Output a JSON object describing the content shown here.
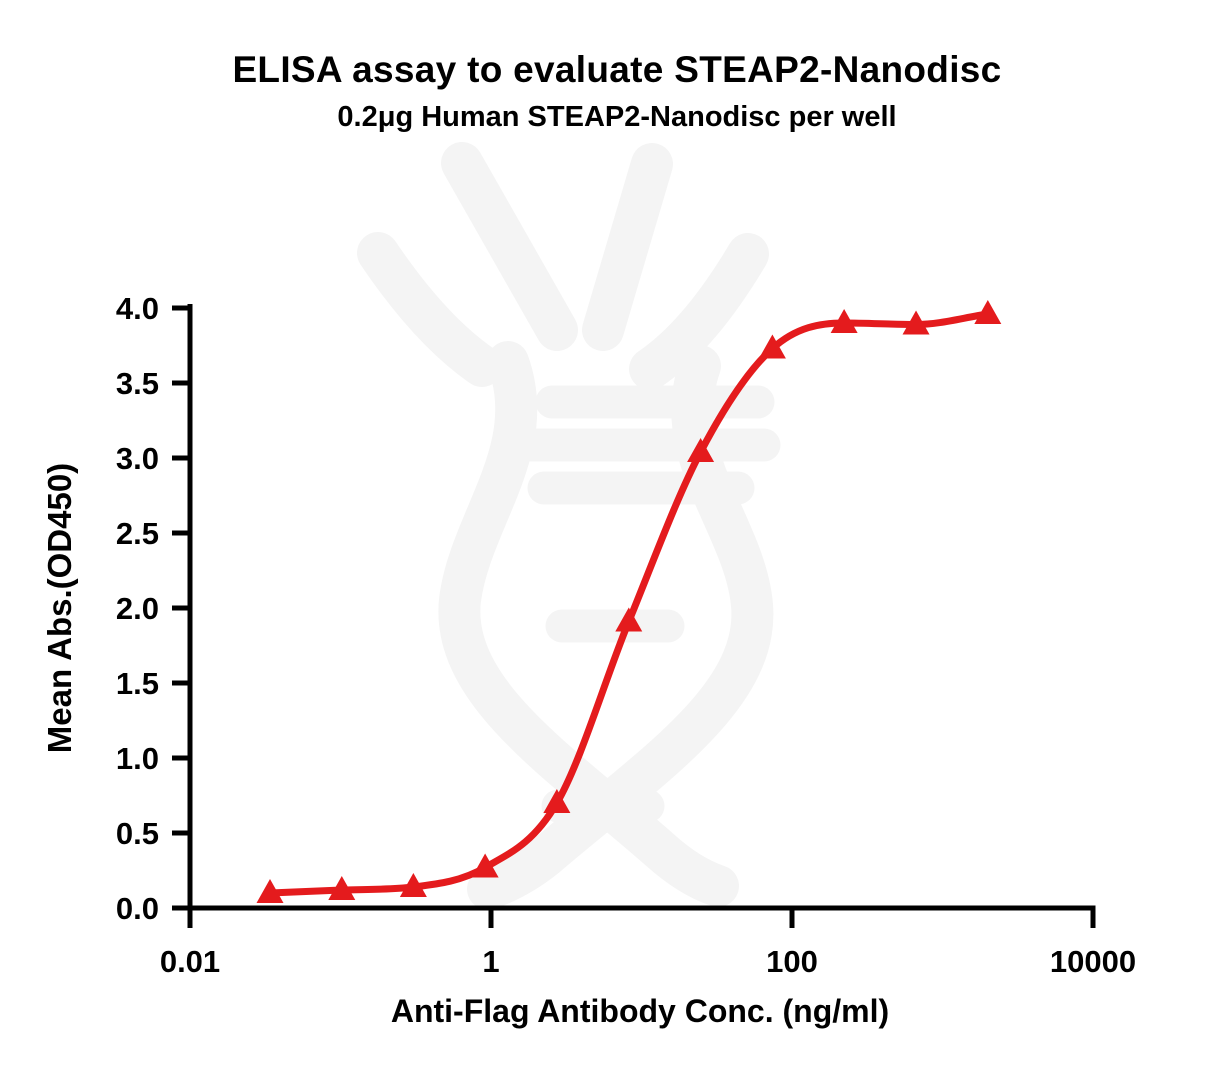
{
  "page": {
    "background": "#ffffff"
  },
  "chart": {
    "title": "ELISA assay to evaluate STEAP2-Nanodisc",
    "subtitle": "0.2μg Human STEAP2-Nanodisc per well",
    "xlabel": "Anti-Flag Antibody Conc. (ng/ml)",
    "ylabel": "Mean Abs.(OD450)",
    "colors": {
      "curve": "#e41b1d",
      "axis": "#000000",
      "text": "#000000",
      "watermark": "#f4f4f4",
      "background": "#ffffff"
    }
  },
  "chart_data": {
    "type": "scatter",
    "subtype": "dose-response sigmoid curve with triangle markers",
    "series_name": "0.2μg Human STEAP2-Nanodisc per well",
    "x_scale": "log10",
    "x": [
      0.034,
      0.102,
      0.305,
      0.914,
      2.74,
      8.23,
      24.7,
      74.1,
      222,
      667,
      2000
    ],
    "y": [
      0.1,
      0.12,
      0.14,
      0.27,
      0.7,
      1.91,
      3.04,
      3.73,
      3.9,
      3.89,
      3.96
    ],
    "xlim": [
      0.01,
      10000
    ],
    "ylim": [
      0.0,
      4.0
    ],
    "x_ticks": [
      {
        "value": 0.01,
        "label": "0.01"
      },
      {
        "value": 1,
        "label": "1"
      },
      {
        "value": 100,
        "label": "100"
      },
      {
        "value": 10000,
        "label": "10000"
      }
    ],
    "y_ticks": [
      {
        "value": 0.0,
        "label": "0.0"
      },
      {
        "value": 0.5,
        "label": "0.5"
      },
      {
        "value": 1.0,
        "label": "1.0"
      },
      {
        "value": 1.5,
        "label": "1.5"
      },
      {
        "value": 2.0,
        "label": "2.0"
      },
      {
        "value": 2.5,
        "label": "2.5"
      },
      {
        "value": 3.0,
        "label": "3.0"
      },
      {
        "value": 3.5,
        "label": "3.5"
      },
      {
        "value": 4.0,
        "label": "4.0"
      }
    ],
    "title": "ELISA assay to evaluate STEAP2-Nanodisc",
    "xlabel": "Anti-Flag Antibody Conc. (ng/ml)",
    "ylabel": "Mean Abs.(OD450)",
    "grid": false,
    "legend": "none",
    "marker": "triangle-up",
    "curve_fit": {
      "model": "4PL",
      "bottom": 0.1,
      "top": 3.96,
      "ec50": 10,
      "hill": 1.3
    }
  }
}
